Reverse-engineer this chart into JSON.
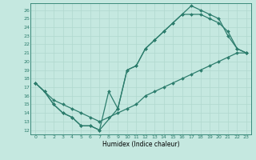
{
  "xlabel": "Humidex (Indice chaleur)",
  "xlim": [
    -0.5,
    23.5
  ],
  "ylim": [
    11.5,
    26.8
  ],
  "xticks": [
    0,
    1,
    2,
    3,
    4,
    5,
    6,
    7,
    8,
    9,
    10,
    11,
    12,
    13,
    14,
    15,
    16,
    17,
    18,
    19,
    20,
    21,
    22,
    23
  ],
  "yticks": [
    12,
    13,
    14,
    15,
    16,
    17,
    18,
    19,
    20,
    21,
    22,
    23,
    24,
    25,
    26
  ],
  "line_color": "#2d7d6d",
  "bg_color": "#c5e8e0",
  "grid_color": "#b0d8ce",
  "curve1_x": [
    0,
    1,
    2,
    3,
    4,
    5,
    6,
    7,
    9,
    10,
    11,
    12,
    13,
    14,
    15,
    16,
    17,
    18,
    19,
    20,
    21,
    22,
    23
  ],
  "curve1_y": [
    17.5,
    16.5,
    15.0,
    14.0,
    13.5,
    12.5,
    12.5,
    12.0,
    14.5,
    19.0,
    19.5,
    21.5,
    22.5,
    23.5,
    24.5,
    25.5,
    26.5,
    26.0,
    25.5,
    25.0,
    23.0,
    21.5,
    21.0
  ],
  "curve2_x": [
    0,
    1,
    2,
    3,
    4,
    5,
    6,
    7,
    8,
    9,
    10,
    11,
    12,
    13,
    14,
    15,
    16,
    17,
    18,
    19,
    20,
    21,
    22,
    23
  ],
  "curve2_y": [
    17.5,
    16.5,
    15.0,
    14.0,
    13.5,
    12.5,
    12.5,
    12.0,
    16.5,
    14.5,
    19.0,
    19.5,
    21.5,
    22.5,
    23.5,
    24.5,
    25.5,
    25.5,
    25.5,
    25.0,
    24.5,
    23.5,
    21.5,
    21.0
  ],
  "curve3_x": [
    0,
    1,
    2,
    3,
    4,
    5,
    6,
    7,
    8,
    9,
    10,
    11,
    12,
    13,
    14,
    15,
    16,
    17,
    18,
    19,
    20,
    21,
    22,
    23
  ],
  "curve3_y": [
    17.5,
    16.5,
    15.5,
    15.0,
    14.5,
    14.0,
    13.5,
    13.0,
    13.5,
    14.0,
    14.5,
    15.0,
    16.0,
    16.5,
    17.0,
    17.5,
    18.0,
    18.5,
    19.0,
    19.5,
    20.0,
    20.5,
    21.0,
    21.0
  ],
  "markersize": 2.0,
  "linewidth": 0.9
}
